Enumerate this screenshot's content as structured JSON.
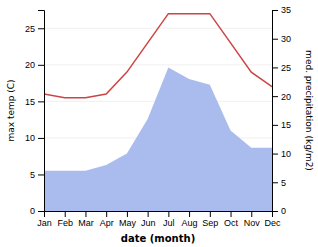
{
  "chart_data": {
    "type": "line",
    "categories": [
      "Jan",
      "Feb",
      "Mar",
      "Apr",
      "May",
      "Jun",
      "Jul",
      "Aug",
      "Sep",
      "Oct",
      "Nov",
      "Dec"
    ],
    "series": [
      {
        "type": "area",
        "axis": "y2",
        "color": "#aabbee",
        "values": [
          7.0,
          7.0,
          7.0,
          8.0,
          10.0,
          16.0,
          25.0,
          23.0,
          22.0,
          14.0,
          11.0,
          11.0
        ]
      },
      {
        "type": "line",
        "color": "#cc4444",
        "values": [
          16.0,
          15.5,
          15.5,
          16.0,
          19.0,
          23.0,
          27.0,
          27.0,
          27.0,
          23.0,
          19.0,
          17.0
        ]
      }
    ],
    "xlabel": "date (month)",
    "ylabel": "max temp (C)",
    "y2label": "med. precipitation (kg/m2)",
    "ylim": [
      0,
      27.5
    ],
    "yticks": [
      0,
      5,
      10,
      15,
      20,
      25
    ],
    "y2lim": [
      0,
      35
    ],
    "y2ticks": [
      0,
      5,
      10,
      15,
      20,
      25,
      30,
      35
    ],
    "grid": true
  }
}
